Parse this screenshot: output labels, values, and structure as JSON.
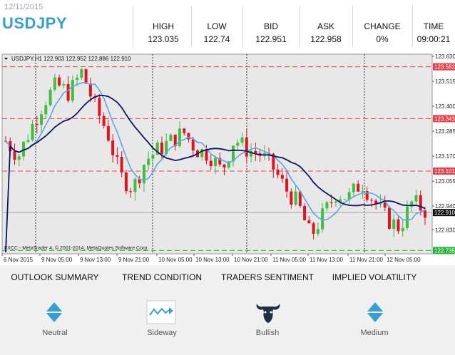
{
  "header": {
    "date": "12/11/2015",
    "symbol": "USDJPY",
    "stats": [
      {
        "label": "HIGH",
        "value": "123.035"
      },
      {
        "label": "LOW",
        "value": "122.74"
      },
      {
        "label": "BID",
        "value": "122.951"
      },
      {
        "label": "ASK",
        "value": "122.958"
      },
      {
        "label": "CHANGE",
        "value": "0%"
      },
      {
        "label": "TIME",
        "value": "09:00:21"
      }
    ]
  },
  "chart_info": {
    "title": "USDJPY,H1  122.903 122.952 122.886 122.910",
    "copyright": "FXCC - MetaTrader 4, © 2001-2014, MetaQuotes Software Corp."
  },
  "chart_data": {
    "type": "candlestick",
    "symbol": "USDJPY",
    "timeframe": "H1",
    "ylim": [
      122.72,
      123.64
    ],
    "y_ticks": [
      "123.630",
      "123.515",
      "123.400",
      "123.285",
      "123.170",
      "123.055",
      "122.940",
      "122.830"
    ],
    "x_ticks": [
      "6 Nov 2015",
      "9 Nov 05:00",
      "9 Nov 13:00",
      "9 Nov 21:00",
      "10 Nov 05:00",
      "10 Nov 13:00",
      "10 Nov 21:00",
      "11 Nov 05:00",
      "11 Nov 13:00",
      "11 Nov 21:00",
      "12 Nov 05:00"
    ],
    "levels": [
      {
        "price": 123.582,
        "label": "123.582",
        "color": "#e8404a",
        "style": "dashed"
      },
      {
        "price": 123.343,
        "label": "123.343",
        "color": "#e8404a",
        "style": "dashed"
      },
      {
        "price": 123.101,
        "label": "123.101",
        "color": "#e8404a",
        "style": "dashed"
      },
      {
        "price": 122.735,
        "label": "122.735",
        "color": "#2bb33a",
        "style": "dashed"
      }
    ],
    "current_price": {
      "price": 122.91,
      "label": "122.910"
    },
    "colors": {
      "bull": "#3fbf3f",
      "bear": "#e2131e",
      "ma_fast": "#5aa7e6",
      "ma_slow": "#0b1663",
      "background": "#e8e8e8"
    }
  },
  "sections": [
    {
      "title": "OUTLOOK SUMMARY",
      "value": "Neutral",
      "icon": "neutral-diamond-icon"
    },
    {
      "title": "TREND CONDITION",
      "value": "Sideway",
      "icon": "sideway-trend-icon"
    },
    {
      "title": "TRADERS SENTIMENT",
      "value": "Bullish",
      "icon": "bull-head-icon"
    },
    {
      "title": "IMPLIED VOLATILITY",
      "value": "Medium",
      "icon": "medium-diamond-icon"
    }
  ]
}
